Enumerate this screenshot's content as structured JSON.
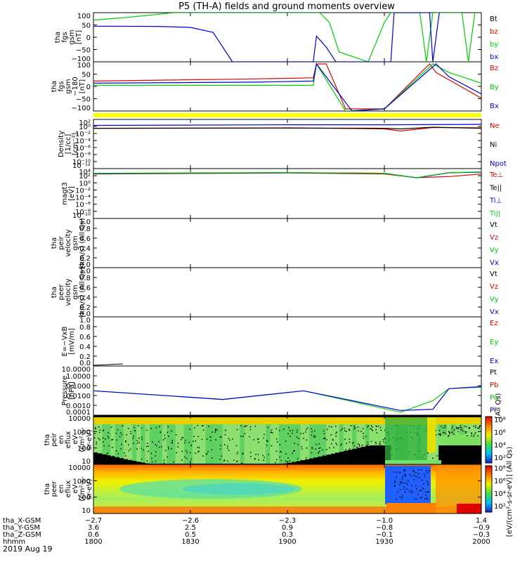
{
  "title": "P5 (TH-A) fields and ground moments overview",
  "date": "2019 Aug 19",
  "colors": {
    "black": "#000000",
    "red": "#e00000",
    "green": "#00d000",
    "blue": "#0000e0",
    "yellow": "#ffff00"
  },
  "panels": [
    {
      "id": "fgs-gsm",
      "ylabel": [
        "tha",
        "fgs",
        "gsm",
        "[nT]"
      ],
      "yticks": [
        "100",
        "50",
        "0",
        "−50",
        "−100"
      ],
      "legend": [
        {
          "text": "Bt",
          "color": "black"
        },
        {
          "text": "bz",
          "color": "red"
        },
        {
          "text": "by",
          "color": "green"
        },
        {
          "text": "bx",
          "color": "blue"
        }
      ]
    },
    {
      "id": "fgs-gsm-trim",
      "ylabel": [
        "tha",
        "fgs",
        "gsm",
        "−180",
        "[nT]"
      ],
      "yticks": [
        "100",
        "50",
        "0",
        "−50",
        "−100"
      ],
      "legend": [
        {
          "text": "Bz",
          "color": "red"
        },
        {
          "text": "By",
          "color": "green"
        },
        {
          "text": "Bx",
          "color": "blue"
        }
      ]
    },
    {
      "id": "density",
      "ylabel": [
        "Density",
        "[1/cc]",
        "[cm⁻³]"
      ],
      "yticks": [
        "10²",
        "10⁰",
        "10⁻²",
        "10⁻⁴",
        "10⁻⁶",
        "10⁻⁸",
        "10⁻¹⁰",
        "10⁻¹²"
      ],
      "legend": [
        {
          "text": "Ne",
          "color": "red"
        },
        {
          "text": "Ni",
          "color": "black"
        },
        {
          "text": "Npot",
          "color": "blue"
        }
      ]
    },
    {
      "id": "temperature",
      "ylabel": [
        "magt3",
        "[eV]"
      ],
      "yticks": [
        "10⁴",
        "10²",
        "10⁰",
        "10⁻²",
        "10⁻⁴",
        "10⁻⁶",
        "10⁻⁸",
        "10⁻¹⁰"
      ],
      "legend": [
        {
          "text": "Te⊥",
          "color": "red"
        },
        {
          "text": "Te||",
          "color": "black"
        },
        {
          "text": "Ti⊥",
          "color": "blue"
        },
        {
          "text": "Ti||",
          "color": "green"
        }
      ]
    },
    {
      "id": "peir-velocity",
      "ylabel": [
        "tha",
        "peir",
        "velocity",
        "gsm",
        "[km/s] (All Qs)"
      ],
      "yticks": [
        "1.0",
        "0.8",
        "0.6",
        "0.4",
        "0.2",
        "0.0"
      ],
      "legend": [
        {
          "text": "Vt",
          "color": "black"
        },
        {
          "text": "Vz",
          "color": "red"
        },
        {
          "text": "Vy",
          "color": "green"
        },
        {
          "text": "Vx",
          "color": "blue"
        }
      ]
    },
    {
      "id": "peer-velocity",
      "ylabel": [
        "tha",
        "peer",
        "velocity",
        "gsm",
        "[km/s] (All Qs)"
      ],
      "yticks": [
        "1.0",
        "0.8",
        "0.6",
        "0.4",
        "0.2",
        "0.0"
      ],
      "legend": [
        {
          "text": "Vt",
          "color": "black"
        },
        {
          "text": "Vz",
          "color": "red"
        },
        {
          "text": "Vy",
          "color": "green"
        },
        {
          "text": "Vx",
          "color": "blue"
        }
      ]
    },
    {
      "id": "efield",
      "ylabel": [
        "E=−VxB",
        "[mV/m]"
      ],
      "yticks": [
        "1.0",
        "0.8",
        "0.6",
        "0.4",
        "0.2",
        "0.0"
      ],
      "legend": [
        {
          "text": "Ez",
          "color": "red"
        },
        {
          "text": "Ey",
          "color": "green"
        },
        {
          "text": "Ex",
          "color": "blue"
        }
      ]
    },
    {
      "id": "pressure",
      "ylabel": [
        "Pressure",
        "[nPa]"
      ],
      "yticks": [
        "10.0000",
        "1.0000",
        "0.1000",
        "0.0100",
        "0.0010",
        "0.0001"
      ],
      "legend": [
        {
          "text": "Pt",
          "color": "black"
        },
        {
          "text": "Pb",
          "color": "red"
        },
        {
          "text": "Pe",
          "color": "green"
        },
        {
          "text": "Pi",
          "color": "blue"
        }
      ],
      "side_note": "(All Qs)"
    },
    {
      "id": "peir-eflux",
      "ylabel": [
        "tha",
        "peir",
        "en",
        "eflux",
        "eV",
        "(cm²-s-",
        "sr-eV)"
      ],
      "yticks": [
        "10000",
        "1000",
        "100",
        "10"
      ]
    },
    {
      "id": "peer-eflux",
      "ylabel": [
        "tha",
        "peer",
        "en",
        "eflux",
        "eV",
        "(cm²-s-",
        "sr-eV)"
      ],
      "yticks": [
        "10000",
        "1000",
        "100",
        "10"
      ]
    }
  ],
  "colorbar": {
    "ticks": [
      "10⁸",
      "10⁶",
      "10⁴",
      "10²"
    ],
    "ticks_bottom": [
      "10⁸",
      "10⁶",
      "10⁴",
      "10²"
    ],
    "label": "[eV/(cm²-s-sr-eV)] (All Qs)"
  },
  "xaxis": {
    "row_labels": [
      "tha_X-GSM",
      "tha_Y-GSM",
      "tha_Z-GSM",
      "hhmm"
    ],
    "columns": [
      {
        "values": [
          "−2.7",
          "3.6",
          "0.6",
          "1800"
        ]
      },
      {
        "values": [
          "−2.6",
          "2.5",
          "0.5",
          "1830"
        ]
      },
      {
        "values": [
          "−2.3",
          "0.9",
          "0.3",
          "1900"
        ]
      },
      {
        "values": [
          "−1.0",
          "−0.8",
          "−0.1",
          "1930"
        ]
      },
      {
        "values": [
          "1.4",
          "−0.9",
          "−0.3",
          "2000"
        ]
      }
    ]
  },
  "chart_data": [
    {
      "type": "line",
      "name": "fgs gsm",
      "x_range_hhmm": [
        "1800",
        "2000"
      ],
      "ylim": [
        -100,
        100
      ],
      "series": [
        {
          "name": "by",
          "color": "green",
          "x": [
            "1800",
            "1810",
            "1825",
            "1855",
            "1910",
            "1913",
            "1916",
            "1925",
            "1930",
            "1932",
            "1941",
            "1943",
            "1945",
            "1954",
            "1956",
            "1958"
          ],
          "y": [
            70,
            80,
            100,
            100,
            100,
            60,
            -60,
            -100,
            60,
            100,
            100,
            -100,
            100,
            100,
            -100,
            100
          ]
        },
        {
          "name": "bx",
          "color": "blue",
          "x": [
            "1800",
            "1820",
            "1830",
            "1837",
            "1843",
            "1908",
            "1909",
            "1912",
            "1915",
            "1932",
            "1933",
            "1944",
            "1945",
            "1947"
          ],
          "y": [
            45,
            44,
            40,
            20,
            -100,
            -100,
            5,
            -40,
            -100,
            -100,
            100,
            100,
            -100,
            100
          ]
        }
      ]
    },
    {
      "type": "line",
      "name": "fgs gsm -180",
      "x_range_hhmm": [
        "1800",
        "2000"
      ],
      "ylim": [
        -120,
        110
      ],
      "series": [
        {
          "name": "Bz",
          "color": "red",
          "x": [
            "1800",
            "1850",
            "1908",
            "1909",
            "1912",
            "1918",
            "1930",
            "1944",
            "1946",
            "2000"
          ],
          "y": [
            20,
            30,
            35,
            100,
            100,
            -110,
            -110,
            100,
            60,
            -60
          ]
        },
        {
          "name": "By",
          "color": "green",
          "x": [
            "1800",
            "1850",
            "1908",
            "1909",
            "1918",
            "1930",
            "1945",
            "1950",
            "2000"
          ],
          "y": [
            0,
            0,
            0,
            100,
            -120,
            -110,
            100,
            60,
            10
          ]
        },
        {
          "name": "Bx",
          "color": "blue",
          "x": [
            "1800",
            "1850",
            "1908",
            "1909",
            "1920",
            "1930",
            "1946",
            "1950",
            "2000"
          ],
          "y": [
            10,
            15,
            20,
            100,
            -120,
            -110,
            100,
            40,
            -40
          ]
        }
      ]
    },
    {
      "type": "line",
      "name": "Density",
      "yscale": "log",
      "ylim": [
        1e-12,
        100
      ],
      "series": [
        {
          "name": "Ne",
          "color": "red",
          "x": [
            "1800",
            "1900",
            "1930",
            "1935",
            "1945",
            "2000"
          ],
          "y": [
            0.3,
            0.4,
            0.2,
            0.05,
            0.5,
            0.4
          ]
        },
        {
          "name": "Ni",
          "color": "black",
          "x": [
            "1800",
            "1900",
            "1930",
            "1935",
            "1945",
            "2000"
          ],
          "y": [
            0.3,
            0.35,
            0.3,
            0.2,
            0.6,
            0.3
          ]
        },
        {
          "name": "Npot",
          "color": "blue",
          "x": [
            "1800",
            "1900",
            "1930",
            "2000"
          ],
          "y": [
            2,
            3,
            3,
            4
          ]
        }
      ]
    },
    {
      "type": "line",
      "name": "magt3",
      "yscale": "log",
      "ylim": [
        1e-10,
        10000
      ],
      "series": [
        {
          "name": "Te⊥",
          "color": "red",
          "x": [
            "1800",
            "1900",
            "1930",
            "1940",
            "1950",
            "2000"
          ],
          "y": [
            300,
            600,
            300,
            30,
            60,
            300
          ]
        },
        {
          "name": "Ti⊥",
          "color": "blue",
          "x": [
            "1800",
            "1900",
            "1930",
            "1940",
            "1950",
            "2000"
          ],
          "y": [
            400,
            700,
            500,
            25,
            700,
            1000
          ]
        },
        {
          "name": "Ti||",
          "color": "green",
          "x": [
            "1800",
            "1900",
            "1930",
            "1940",
            "1950",
            "2000"
          ],
          "y": [
            500,
            800,
            500,
            30,
            800,
            1200
          ]
        }
      ]
    },
    {
      "type": "line",
      "name": "Pressure",
      "yscale": "log",
      "ylim": [
        0.0001,
        10
      ],
      "series": [
        {
          "name": "Pe",
          "color": "green",
          "x": [
            "1800",
            "1840",
            "1905",
            "1935",
            "1945",
            "1950",
            "2000"
          ],
          "y": [
            0.03,
            0.004,
            0.03,
            0.0002,
            0.003,
            0.05,
            0.07
          ]
        },
        {
          "name": "Pi",
          "color": "blue",
          "x": [
            "1800",
            "1840",
            "1905",
            "1935",
            "1945",
            "1950",
            "2000"
          ],
          "y": [
            0.03,
            0.004,
            0.03,
            0.0003,
            0.0004,
            0.05,
            0.08
          ]
        }
      ]
    },
    {
      "type": "heatmap",
      "name": "peir en eflux",
      "ylabel": "eV",
      "yscale": "log",
      "ylim": [
        10,
        10000
      ]
    },
    {
      "type": "heatmap",
      "name": "peer en eflux",
      "ylabel": "eV",
      "yscale": "log",
      "ylim": [
        10,
        10000
      ]
    }
  ]
}
